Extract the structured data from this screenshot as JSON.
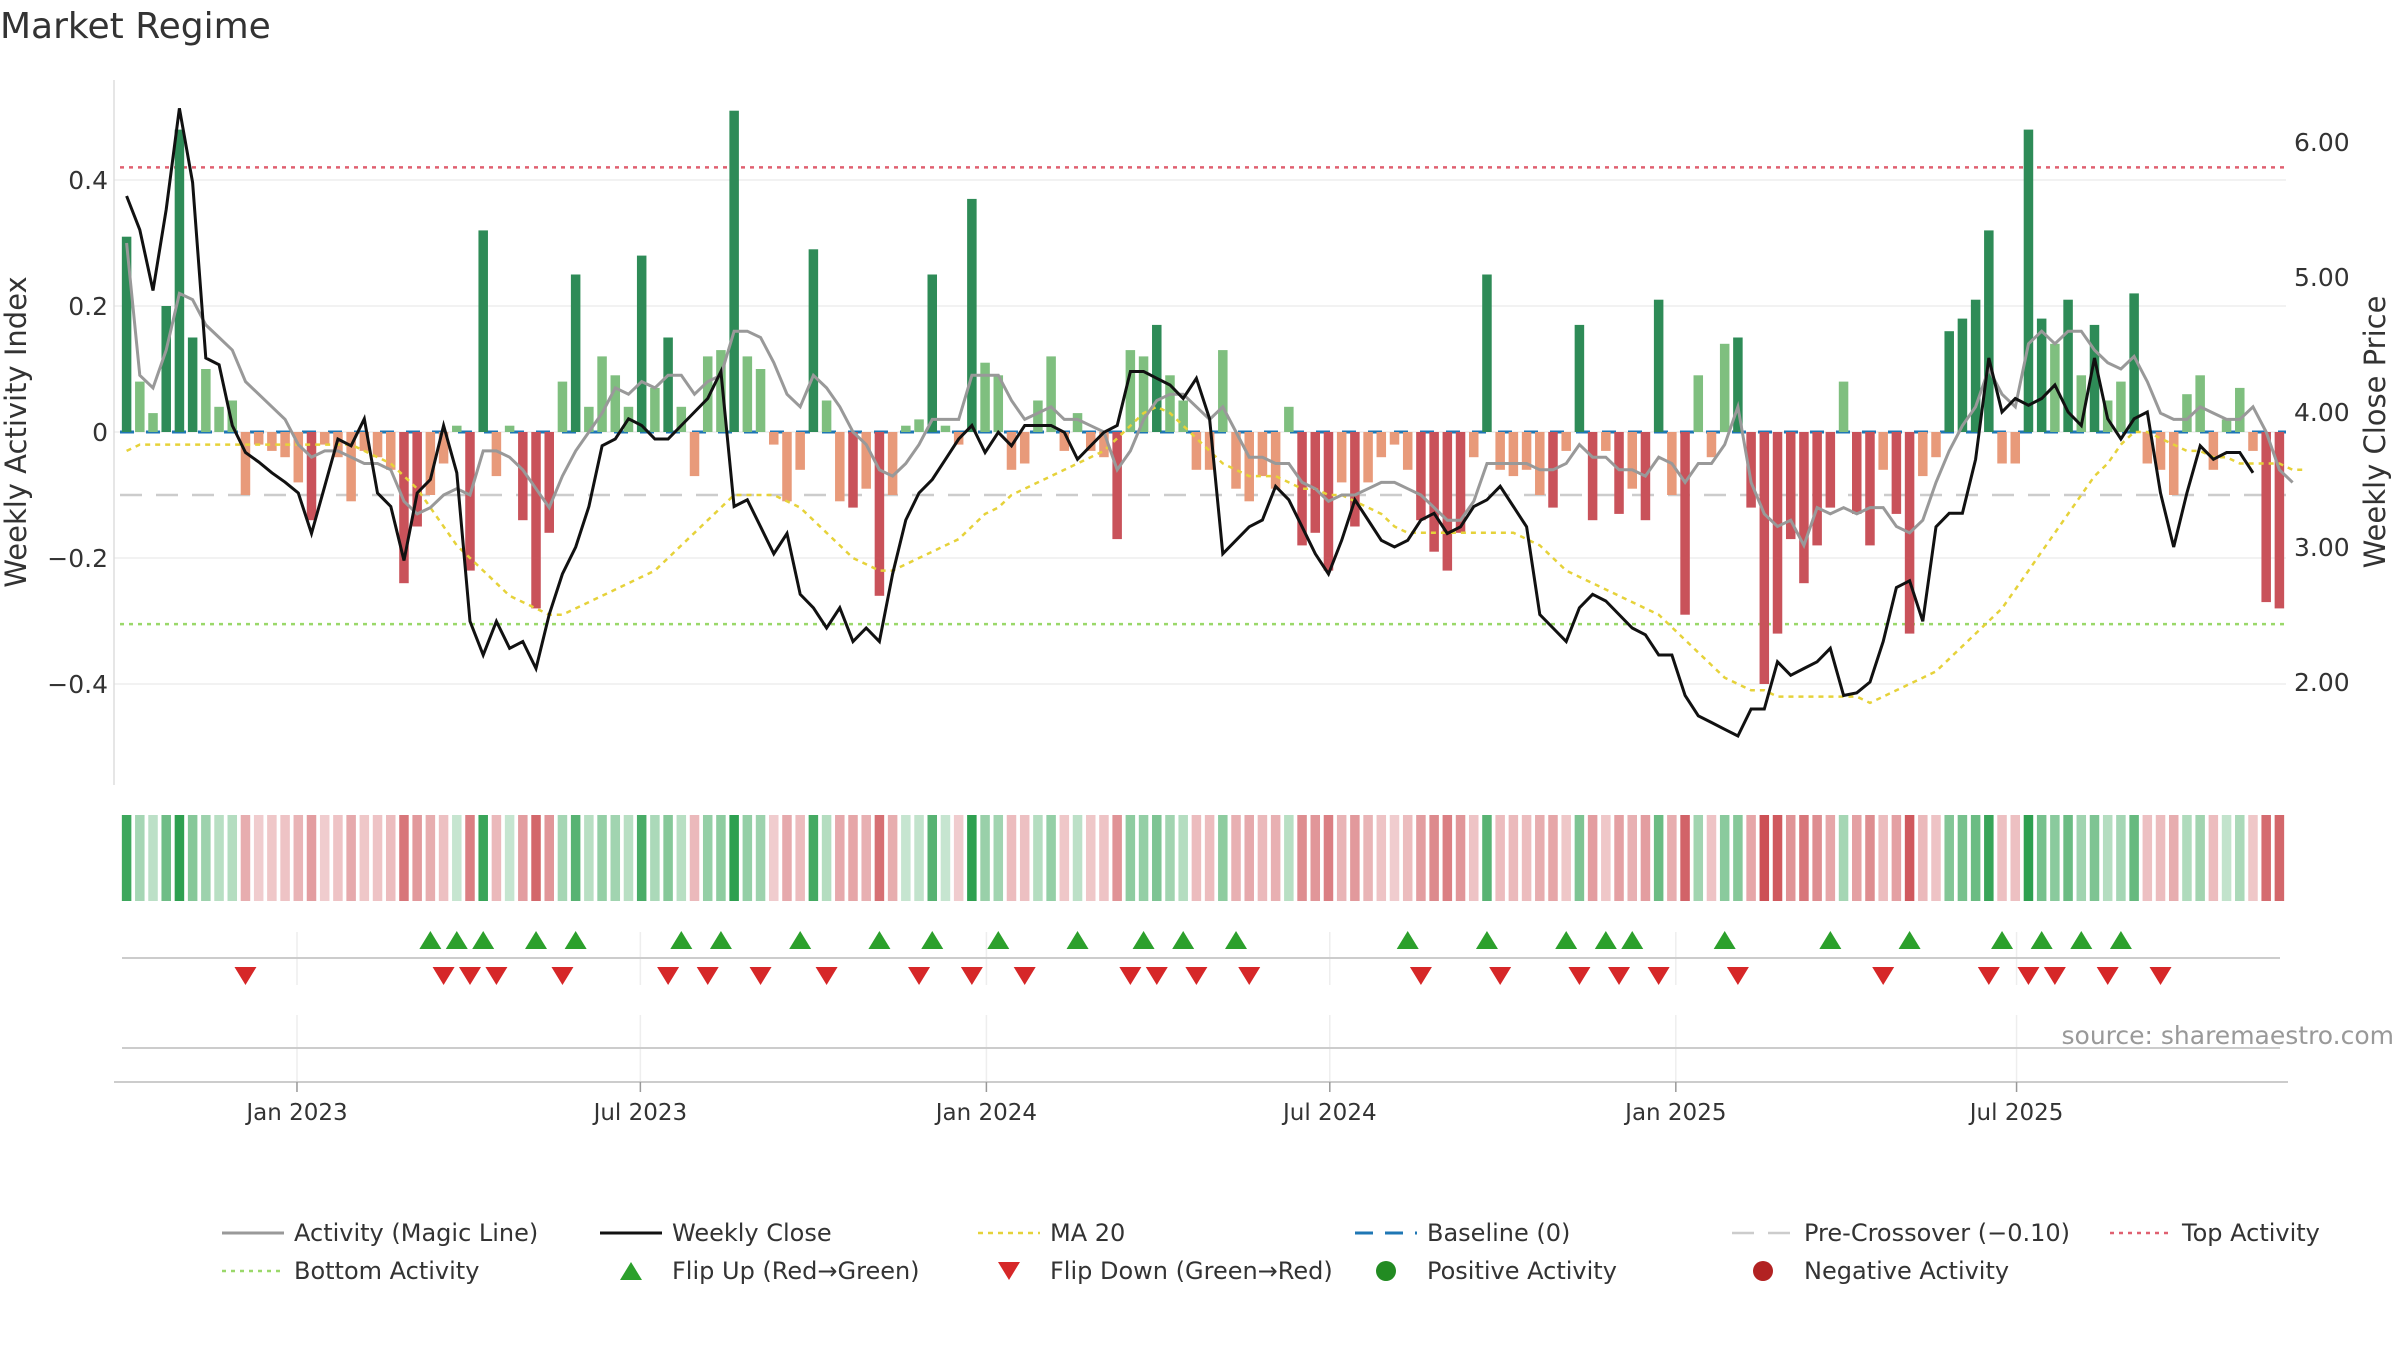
{
  "title": "Market Regime",
  "source": "source: sharemaestro.com",
  "colors": {
    "green_strong": "#2e8b57",
    "green_light": "#7fbf7f",
    "red_strong": "#c9525a",
    "red_light": "#e89a7a",
    "magic_line": "#999999",
    "close_line": "#111111",
    "ma20": "#e6d23a",
    "baseline": "#1f77b4",
    "precross": "#cccccc",
    "top": "#e06070",
    "bottom": "#9ad86a",
    "flip_up": "#2ca02c",
    "flip_down": "#d62728",
    "pos_dot": "#228b22",
    "neg_dot": "#b22222"
  },
  "chart_data": {
    "type": "bar",
    "title": "Market Regime",
    "ylabel": "Weekly Activity Index",
    "y2label": "Weekly Close Price",
    "ylim": [
      -0.56,
      0.56
    ],
    "y2lim": [
      1.2,
      6.5
    ],
    "yticks": [
      "0.4",
      "0.2",
      "0",
      "−0.2",
      "−0.4"
    ],
    "ytick_values": [
      0.4,
      0.2,
      0,
      -0.2,
      -0.4
    ],
    "y2ticks": [
      "6.00",
      "5.00",
      "4.00",
      "3.00",
      "2.00"
    ],
    "y2tick_values": [
      6,
      5,
      4,
      3,
      2
    ],
    "xticks": [
      "Jan 2023",
      "Jul 2023",
      "Jan 2024",
      "Jul 2024",
      "Jan 2025",
      "Jul 2025"
    ],
    "xtick_weeks": [
      13.4,
      39.4,
      65.6,
      91.6,
      117.8,
      143.6
    ],
    "reference_lines": {
      "top": 0.42,
      "bottom": -0.305,
      "pre_crossover": -0.1,
      "baseline": 0
    },
    "activity": [
      0.31,
      0.08,
      0.03,
      0.2,
      0.48,
      0.15,
      0.1,
      0.04,
      0.05,
      -0.1,
      -0.02,
      -0.03,
      -0.04,
      -0.08,
      -0.14,
      -0.02,
      -0.04,
      -0.11,
      -0.03,
      -0.04,
      -0.06,
      -0.24,
      -0.15,
      -0.1,
      -0.05,
      0.01,
      -0.22,
      0.32,
      -0.07,
      0.01,
      -0.14,
      -0.28,
      -0.16,
      0.08,
      0.25,
      0.04,
      0.12,
      0.09,
      0.04,
      0.28,
      0.07,
      0.15,
      0.04,
      -0.07,
      0.12,
      0.13,
      0.51,
      0.12,
      0.1,
      -0.02,
      -0.11,
      -0.06,
      0.29,
      0.05,
      -0.11,
      -0.12,
      -0.09,
      -0.26,
      -0.1,
      0.01,
      0.02,
      0.25,
      0.01,
      -0.02,
      0.37,
      0.11,
      0.09,
      -0.06,
      -0.05,
      0.05,
      0.12,
      -0.03,
      0.03,
      -0.03,
      -0.04,
      -0.17,
      0.13,
      0.12,
      0.17,
      0.09,
      0.05,
      -0.06,
      -0.06,
      0.13,
      -0.09,
      -0.11,
      -0.07,
      -0.09,
      0.04,
      -0.18,
      -0.16,
      -0.22,
      -0.08,
      -0.15,
      -0.08,
      -0.04,
      -0.02,
      -0.06,
      -0.14,
      -0.19,
      -0.22,
      -0.16,
      -0.04,
      0.25,
      -0.06,
      -0.07,
      -0.06,
      -0.1,
      -0.12,
      -0.03,
      0.17,
      -0.14,
      -0.03,
      -0.13,
      -0.09,
      -0.14,
      0.21,
      -0.1,
      -0.29,
      0.09,
      -0.04,
      0.14,
      0.15,
      -0.12,
      -0.4,
      -0.32,
      -0.17,
      -0.24,
      -0.18,
      -0.12,
      0.08,
      -0.13,
      -0.18,
      -0.06,
      -0.13,
      -0.32,
      -0.07,
      -0.04,
      0.16,
      0.18,
      0.21,
      0.32,
      -0.05,
      -0.05,
      0.48,
      0.18,
      0.14,
      0.21,
      0.09,
      0.17,
      0.05,
      0.08,
      0.22,
      -0.05,
      -0.06,
      -0.1,
      0.06,
      0.09,
      -0.06,
      0.02,
      0.07,
      -0.03,
      -0.27,
      -0.28
    ],
    "magic_line": [
      0.3,
      0.09,
      0.07,
      0.13,
      0.22,
      0.21,
      0.17,
      0.15,
      0.13,
      0.08,
      0.06,
      0.04,
      0.02,
      -0.02,
      -0.04,
      -0.03,
      -0.03,
      -0.04,
      -0.05,
      -0.05,
      -0.06,
      -0.11,
      -0.13,
      -0.12,
      -0.1,
      -0.09,
      -0.1,
      -0.03,
      -0.03,
      -0.04,
      -0.06,
      -0.09,
      -0.12,
      -0.07,
      -0.03,
      0.0,
      0.03,
      0.07,
      0.06,
      0.08,
      0.07,
      0.09,
      0.09,
      0.06,
      0.08,
      0.09,
      0.16,
      0.16,
      0.15,
      0.11,
      0.06,
      0.04,
      0.09,
      0.07,
      0.04,
      0.0,
      -0.02,
      -0.06,
      -0.07,
      -0.05,
      -0.02,
      0.02,
      0.02,
      0.02,
      0.09,
      0.09,
      0.09,
      0.05,
      0.02,
      0.03,
      0.04,
      0.02,
      0.02,
      0.01,
      0.0,
      -0.06,
      -0.03,
      0.02,
      0.05,
      0.06,
      0.06,
      0.04,
      0.02,
      0.04,
      0.0,
      -0.04,
      -0.04,
      -0.05,
      -0.05,
      -0.08,
      -0.09,
      -0.11,
      -0.1,
      -0.1,
      -0.09,
      -0.08,
      -0.08,
      -0.09,
      -0.1,
      -0.12,
      -0.14,
      -0.14,
      -0.11,
      -0.05,
      -0.05,
      -0.05,
      -0.05,
      -0.06,
      -0.06,
      -0.05,
      -0.02,
      -0.04,
      -0.04,
      -0.06,
      -0.06,
      -0.07,
      -0.04,
      -0.05,
      -0.08,
      -0.05,
      -0.05,
      -0.02,
      0.04,
      -0.08,
      -0.13,
      -0.15,
      -0.14,
      -0.18,
      -0.12,
      -0.13,
      -0.12,
      -0.13,
      -0.12,
      -0.12,
      -0.15,
      -0.16,
      -0.14,
      -0.08,
      -0.03,
      0.01,
      0.04,
      0.1,
      0.06,
      0.04,
      0.14,
      0.16,
      0.14,
      0.16,
      0.16,
      0.13,
      0.11,
      0.1,
      0.12,
      0.08,
      0.03,
      0.02,
      0.02,
      0.04,
      0.03,
      0.02,
      0.02,
      0.04,
      0.0,
      -0.06,
      -0.08
    ],
    "ma20": [
      -0.03,
      -0.02,
      -0.02,
      -0.02,
      -0.02,
      -0.02,
      -0.02,
      -0.02,
      -0.02,
      -0.02,
      -0.02,
      -0.02,
      -0.02,
      -0.02,
      -0.02,
      -0.02,
      -0.02,
      -0.02,
      -0.03,
      -0.04,
      -0.05,
      -0.07,
      -0.09,
      -0.12,
      -0.15,
      -0.18,
      -0.2,
      -0.22,
      -0.24,
      -0.26,
      -0.27,
      -0.28,
      -0.29,
      -0.29,
      -0.28,
      -0.27,
      -0.26,
      -0.25,
      -0.24,
      -0.23,
      -0.22,
      -0.2,
      -0.18,
      -0.16,
      -0.14,
      -0.12,
      -0.1,
      -0.1,
      -0.1,
      -0.1,
      -0.11,
      -0.12,
      -0.14,
      -0.16,
      -0.18,
      -0.2,
      -0.21,
      -0.22,
      -0.22,
      -0.21,
      -0.2,
      -0.19,
      -0.18,
      -0.17,
      -0.15,
      -0.13,
      -0.12,
      -0.1,
      -0.09,
      -0.08,
      -0.07,
      -0.06,
      -0.05,
      -0.04,
      -0.03,
      -0.01,
      0.01,
      0.03,
      0.04,
      0.03,
      0.01,
      -0.01,
      -0.03,
      -0.05,
      -0.06,
      -0.07,
      -0.07,
      -0.07,
      -0.08,
      -0.09,
      -0.09,
      -0.1,
      -0.1,
      -0.11,
      -0.12,
      -0.13,
      -0.15,
      -0.16,
      -0.16,
      -0.16,
      -0.16,
      -0.16,
      -0.16,
      -0.16,
      -0.16,
      -0.16,
      -0.17,
      -0.18,
      -0.2,
      -0.22,
      -0.23,
      -0.24,
      -0.25,
      -0.26,
      -0.27,
      -0.28,
      -0.29,
      -0.31,
      -0.33,
      -0.35,
      -0.37,
      -0.39,
      -0.4,
      -0.41,
      -0.41,
      -0.42,
      -0.42,
      -0.42,
      -0.42,
      -0.42,
      -0.42,
      -0.42,
      -0.43,
      -0.42,
      -0.41,
      -0.4,
      -0.39,
      -0.38,
      -0.36,
      -0.34,
      -0.32,
      -0.3,
      -0.28,
      -0.25,
      -0.22,
      -0.19,
      -0.16,
      -0.13,
      -0.1,
      -0.07,
      -0.05,
      -0.02,
      0.0,
      0.0,
      -0.01,
      -0.02,
      -0.03,
      -0.03,
      -0.04,
      -0.04,
      -0.05,
      -0.05,
      -0.05,
      -0.05,
      -0.06,
      -0.06
    ],
    "weekly_close": [
      5.6,
      5.35,
      4.9,
      5.5,
      6.25,
      5.7,
      4.4,
      4.35,
      3.9,
      3.7,
      3.63,
      3.55,
      3.48,
      3.4,
      3.1,
      3.45,
      3.8,
      3.75,
      3.95,
      3.4,
      3.3,
      2.9,
      3.4,
      3.5,
      3.9,
      3.55,
      2.45,
      2.2,
      2.45,
      2.25,
      2.3,
      2.1,
      2.5,
      2.8,
      3.0,
      3.3,
      3.75,
      3.8,
      3.95,
      3.9,
      3.8,
      3.8,
      3.9,
      4.0,
      4.1,
      4.3,
      3.3,
      3.35,
      3.15,
      2.95,
      3.1,
      2.65,
      2.55,
      2.4,
      2.55,
      2.3,
      2.4,
      2.3,
      2.8,
      3.2,
      3.4,
      3.5,
      3.65,
      3.8,
      3.9,
      3.7,
      3.85,
      3.75,
      3.9,
      3.9,
      3.9,
      3.85,
      3.65,
      3.75,
      3.85,
      3.9,
      4.3,
      4.3,
      4.25,
      4.2,
      4.1,
      4.25,
      3.95,
      2.95,
      3.05,
      3.15,
      3.2,
      3.45,
      3.35,
      3.15,
      2.95,
      2.8,
      3.05,
      3.35,
      3.2,
      3.05,
      3.0,
      3.05,
      3.2,
      3.25,
      3.1,
      3.15,
      3.3,
      3.35,
      3.45,
      3.3,
      3.15,
      2.5,
      2.4,
      2.3,
      2.55,
      2.65,
      2.6,
      2.5,
      2.4,
      2.35,
      2.2,
      2.2,
      1.9,
      1.75,
      1.7,
      1.65,
      1.6,
      1.8,
      1.8,
      2.15,
      2.05,
      2.1,
      2.15,
      2.25,
      1.9,
      1.92,
      2.0,
      2.3,
      2.7,
      2.75,
      2.45,
      3.15,
      3.25,
      3.25,
      3.65,
      4.4,
      4.0,
      4.1,
      4.05,
      4.1,
      4.2,
      4.0,
      3.9,
      4.4,
      3.95,
      3.8,
      3.95,
      4.0,
      3.4,
      3.0,
      3.4,
      3.75,
      3.65,
      3.7,
      3.7,
      3.55
    ],
    "flip_up_weeks": [
      23,
      25,
      27,
      31,
      34,
      42,
      45,
      51,
      57,
      61,
      66,
      72,
      77,
      80,
      84,
      97,
      103,
      109,
      112,
      114,
      121,
      129,
      135,
      142,
      145,
      148,
      151
    ],
    "flip_down_weeks": [
      9,
      24,
      26,
      28,
      33,
      41,
      44,
      48,
      53,
      60,
      64,
      68,
      76,
      78,
      81,
      85,
      98,
      104,
      110,
      113,
      116,
      122,
      133,
      141,
      144,
      146,
      150,
      154
    ],
    "legend": [
      [
        "Activity (Magic Line)",
        "Weekly Close",
        "MA 20",
        "Baseline (0)",
        "Pre-Crossover (−0.10)",
        "Top Activity"
      ],
      [
        "Bottom Activity",
        "Flip Up (Red→Green)",
        "Flip Down (Green→Red)",
        "Positive Activity",
        "Negative Activity"
      ]
    ]
  }
}
